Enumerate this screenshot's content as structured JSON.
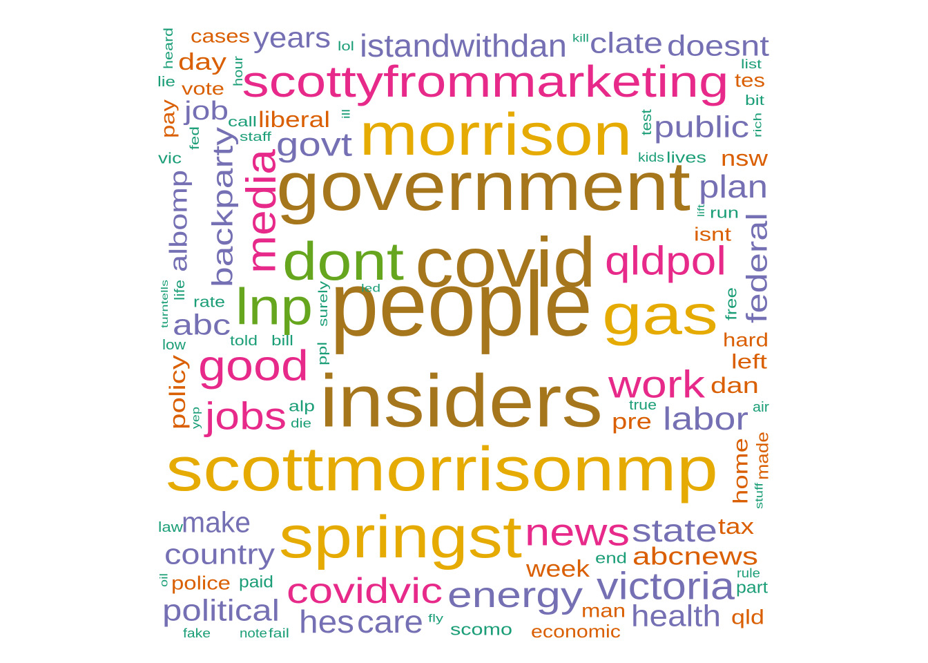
{
  "colors": {
    "teal": "#1b9e77",
    "orange": "#d95f02",
    "purple": "#7570b3",
    "pink": "#e7298a",
    "green": "#66a61e",
    "gold": "#e6ab02",
    "brown": "#a6761d"
  },
  "words": [
    {
      "text": "people",
      "color": "brown"
    },
    {
      "text": "government",
      "color": "brown"
    },
    {
      "text": "insiders",
      "color": "brown"
    },
    {
      "text": "covid",
      "color": "brown"
    },
    {
      "text": "scottmorrisonmp",
      "color": "gold"
    },
    {
      "text": "morrison",
      "color": "gold"
    },
    {
      "text": "springst",
      "color": "gold"
    },
    {
      "text": "gas",
      "color": "gold"
    },
    {
      "text": "scottyfrommarketing",
      "color": "pink"
    },
    {
      "text": "dont",
      "color": "green"
    },
    {
      "text": "lnp",
      "color": "green"
    },
    {
      "text": "media",
      "color": "pink"
    },
    {
      "text": "good",
      "color": "pink"
    },
    {
      "text": "jobs",
      "color": "pink"
    },
    {
      "text": "qldpol",
      "color": "pink"
    },
    {
      "text": "work",
      "color": "pink"
    },
    {
      "text": "news",
      "color": "pink"
    },
    {
      "text": "covidvic",
      "color": "pink"
    },
    {
      "text": "victoria",
      "color": "purple"
    },
    {
      "text": "energy",
      "color": "purple"
    },
    {
      "text": "istandwithdan",
      "color": "purple"
    },
    {
      "text": "clate",
      "color": "purple"
    },
    {
      "text": "doesnt",
      "color": "purple"
    },
    {
      "text": "years",
      "color": "purple"
    },
    {
      "text": "govt",
      "color": "purple"
    },
    {
      "text": "public",
      "color": "purple"
    },
    {
      "text": "plan",
      "color": "purple"
    },
    {
      "text": "federal",
      "color": "purple"
    },
    {
      "text": "labor",
      "color": "purple"
    },
    {
      "text": "state",
      "color": "purple"
    },
    {
      "text": "health",
      "color": "purple"
    },
    {
      "text": "care",
      "color": "purple"
    },
    {
      "text": "hes",
      "color": "purple"
    },
    {
      "text": "political",
      "color": "purple"
    },
    {
      "text": "country",
      "color": "purple"
    },
    {
      "text": "make",
      "color": "purple"
    },
    {
      "text": "abc",
      "color": "purple"
    },
    {
      "text": "backparty",
      "color": "purple"
    },
    {
      "text": "albomp",
      "color": "purple"
    },
    {
      "text": "job",
      "color": "purple"
    },
    {
      "text": "cases",
      "color": "orange"
    },
    {
      "text": "day",
      "color": "orange"
    },
    {
      "text": "vote",
      "color": "orange"
    },
    {
      "text": "liberal",
      "color": "orange"
    },
    {
      "text": "pay",
      "color": "orange"
    },
    {
      "text": "policy",
      "color": "orange"
    },
    {
      "text": "police",
      "color": "orange"
    },
    {
      "text": "abcnews",
      "color": "orange"
    },
    {
      "text": "week",
      "color": "orange"
    },
    {
      "text": "tax",
      "color": "orange"
    },
    {
      "text": "pre",
      "color": "orange"
    },
    {
      "text": "dan",
      "color": "orange"
    },
    {
      "text": "left",
      "color": "orange"
    },
    {
      "text": "hard",
      "color": "orange"
    },
    {
      "text": "isnt",
      "color": "orange"
    },
    {
      "text": "nsw",
      "color": "orange"
    },
    {
      "text": "tes",
      "color": "orange"
    },
    {
      "text": "home",
      "color": "orange"
    },
    {
      "text": "made",
      "color": "orange"
    },
    {
      "text": "man",
      "color": "orange"
    },
    {
      "text": "economic",
      "color": "orange"
    },
    {
      "text": "qld",
      "color": "orange"
    },
    {
      "text": "heard",
      "color": "teal"
    },
    {
      "text": "lie",
      "color": "teal"
    },
    {
      "text": "hour",
      "color": "teal"
    },
    {
      "text": "lol",
      "color": "teal"
    },
    {
      "text": "kill",
      "color": "teal"
    },
    {
      "text": "list",
      "color": "teal"
    },
    {
      "text": "bit",
      "color": "teal"
    },
    {
      "text": "rich",
      "color": "teal"
    },
    {
      "text": "call",
      "color": "teal"
    },
    {
      "text": "ill",
      "color": "teal"
    },
    {
      "text": "staff",
      "color": "teal"
    },
    {
      "text": "fed",
      "color": "teal"
    },
    {
      "text": "vic",
      "color": "teal"
    },
    {
      "text": "test",
      "color": "teal"
    },
    {
      "text": "kids",
      "color": "teal"
    },
    {
      "text": "lives",
      "color": "teal"
    },
    {
      "text": "lift",
      "color": "teal"
    },
    {
      "text": "run",
      "color": "teal"
    },
    {
      "text": "turntells",
      "color": "teal"
    },
    {
      "text": "life",
      "color": "teal"
    },
    {
      "text": "rate",
      "color": "teal"
    },
    {
      "text": "surely",
      "color": "teal"
    },
    {
      "text": "led",
      "color": "teal"
    },
    {
      "text": "free",
      "color": "teal"
    },
    {
      "text": "told",
      "color": "teal"
    },
    {
      "text": "bill",
      "color": "teal"
    },
    {
      "text": "low",
      "color": "teal"
    },
    {
      "text": "ppl",
      "color": "teal"
    },
    {
      "text": "alp",
      "color": "teal"
    },
    {
      "text": "die",
      "color": "teal"
    },
    {
      "text": "yep",
      "color": "teal"
    },
    {
      "text": "true",
      "color": "teal"
    },
    {
      "text": "air",
      "color": "teal"
    },
    {
      "text": "stuff",
      "color": "teal"
    },
    {
      "text": "law",
      "color": "teal"
    },
    {
      "text": "end",
      "color": "teal"
    },
    {
      "text": "rule",
      "color": "teal"
    },
    {
      "text": "part",
      "color": "teal"
    },
    {
      "text": "oil",
      "color": "teal"
    },
    {
      "text": "paid",
      "color": "teal"
    },
    {
      "text": "fake",
      "color": "teal"
    },
    {
      "text": "note",
      "color": "teal"
    },
    {
      "text": "fail",
      "color": "teal"
    },
    {
      "text": "fly",
      "color": "teal"
    },
    {
      "text": "scomo",
      "color": "teal"
    }
  ]
}
